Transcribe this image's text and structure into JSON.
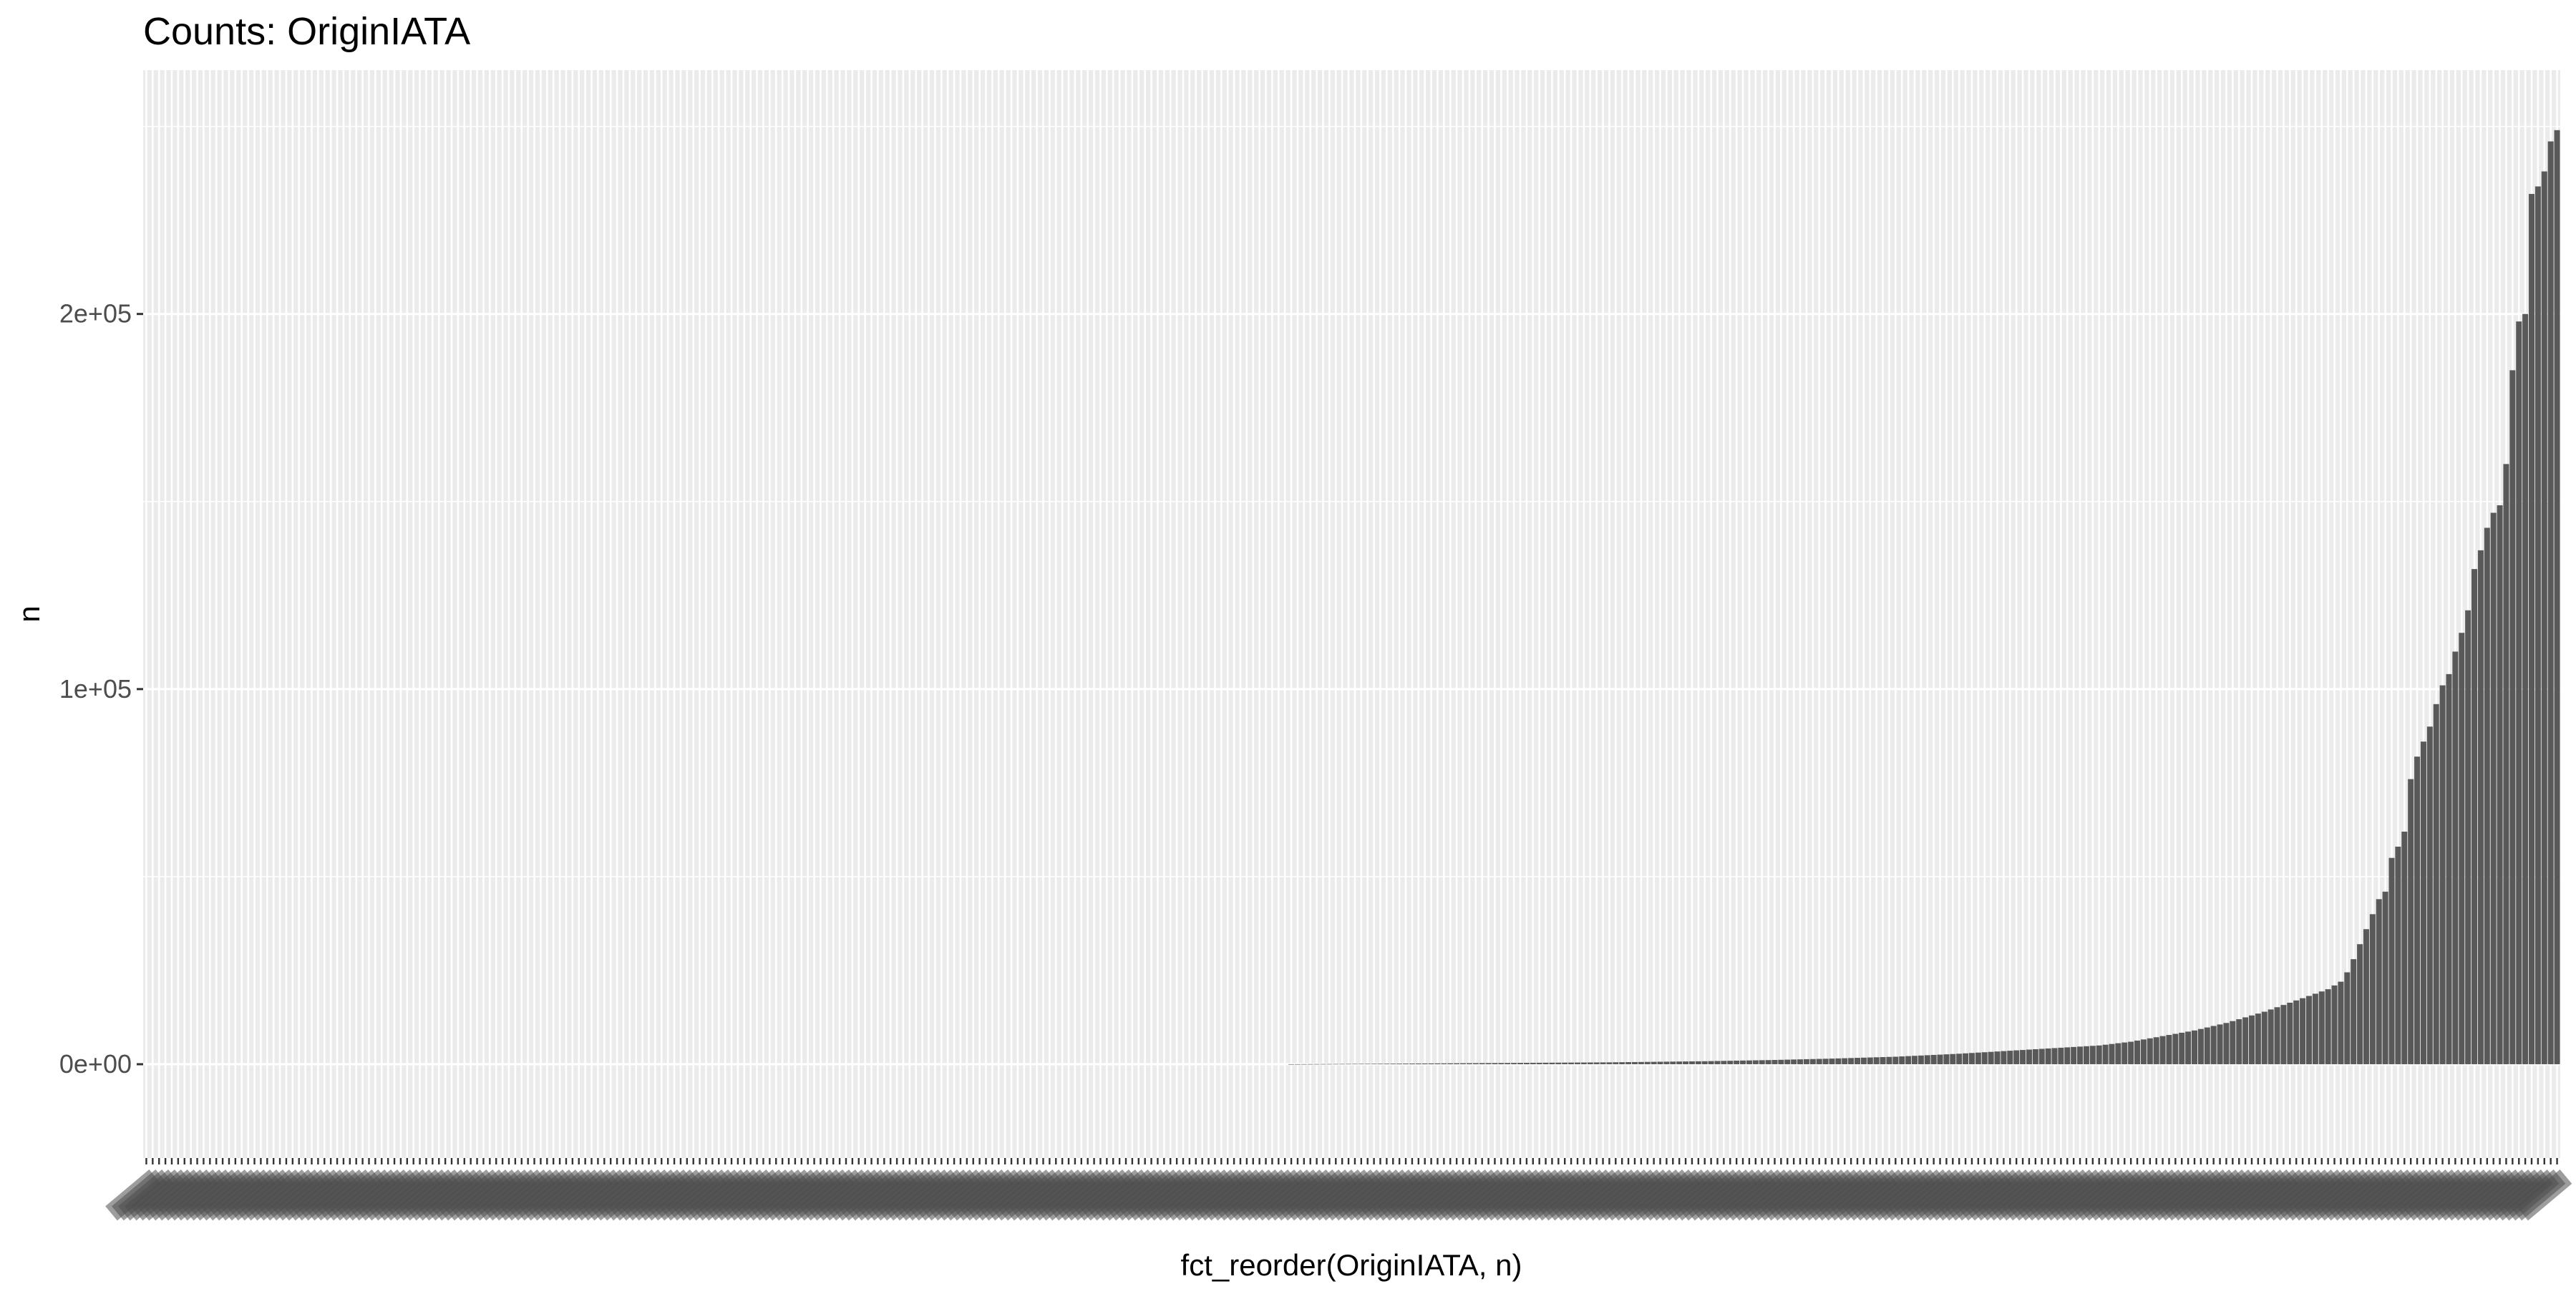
{
  "chart_data": {
    "type": "bar",
    "title": "Counts: OriginIATA",
    "xlabel": "fct_reorder(OriginIATA, n)",
    "ylabel": "n",
    "ylim": [
      -25000,
      265000
    ],
    "yticks": [
      {
        "value": 0,
        "label": "0e+00"
      },
      {
        "value": 100000,
        "label": "1e+05"
      },
      {
        "value": 200000,
        "label": "2e+05"
      }
    ],
    "grid": true,
    "legend": "none",
    "n_categories": 360,
    "category_labels_note": "360 airport-code tick labels, overlapping and illegible",
    "values": [
      0,
      0,
      0,
      0,
      0,
      0,
      0,
      0,
      0,
      0,
      0,
      0,
      0,
      0,
      0,
      0,
      0,
      0,
      0,
      0,
      0,
      0,
      0,
      0,
      0,
      0,
      0,
      0,
      0,
      0,
      0,
      0,
      0,
      0,
      0,
      0,
      0,
      0,
      0,
      0,
      0,
      0,
      0,
      0,
      0,
      0,
      0,
      0,
      0,
      0,
      0,
      0,
      0,
      0,
      0,
      0,
      0,
      0,
      0,
      0,
      0,
      0,
      0,
      0,
      0,
      0,
      0,
      0,
      0,
      0,
      0,
      0,
      0,
      0,
      0,
      0,
      0,
      0,
      0,
      0,
      0,
      0,
      0,
      0,
      0,
      0,
      0,
      0,
      0,
      0,
      0,
      0,
      0,
      0,
      0,
      0,
      0,
      0,
      0,
      0,
      0,
      0,
      0,
      0,
      0,
      0,
      0,
      0,
      0,
      0,
      0,
      0,
      0,
      0,
      0,
      0,
      0,
      0,
      0,
      0,
      0,
      0,
      0,
      0,
      0,
      0,
      0,
      0,
      0,
      0,
      0,
      0,
      0,
      0,
      0,
      0,
      0,
      0,
      0,
      0,
      0,
      0,
      0,
      0,
      0,
      0,
      0,
      0,
      0,
      0,
      0,
      0,
      0,
      0,
      0,
      0,
      0,
      0,
      0,
      0,
      0,
      0,
      0,
      0,
      0,
      0,
      0,
      0,
      0,
      0,
      0,
      0,
      0,
      0,
      0,
      0,
      0,
      0,
      0,
      0,
      5,
      10,
      20,
      30,
      40,
      50,
      60,
      70,
      80,
      90,
      100,
      110,
      120,
      130,
      140,
      150,
      160,
      170,
      180,
      190,
      200,
      210,
      220,
      230,
      240,
      250,
      260,
      270,
      280,
      290,
      300,
      310,
      320,
      330,
      340,
      350,
      360,
      370,
      380,
      390,
      400,
      410,
      420,
      430,
      440,
      450,
      460,
      470,
      480,
      490,
      500,
      520,
      540,
      560,
      580,
      600,
      620,
      640,
      660,
      680,
      700,
      720,
      740,
      760,
      780,
      800,
      830,
      860,
      890,
      920,
      950,
      980,
      1010,
      1040,
      1070,
      1100,
      1140,
      1180,
      1220,
      1260,
      1300,
      1340,
      1380,
      1420,
      1460,
      1500,
      1550,
      1600,
      1650,
      1700,
      1750,
      1800,
      1850,
      1900,
      1950,
      2000,
      2080,
      2160,
      2240,
      2320,
      2400,
      2480,
      2560,
      2640,
      2720,
      2800,
      2900,
      3000,
      3100,
      3200,
      3300,
      3400,
      3500,
      3600,
      3700,
      3800,
      3900,
      4000,
      4100,
      4200,
      4300,
      4400,
      4500,
      4600,
      4700,
      4800,
      4900,
      5000,
      5200,
      5400,
      5600,
      5800,
      6000,
      6300,
      6600,
      6900,
      7200,
      7500,
      7800,
      8100,
      8400,
      8700,
      9000,
      9400,
      9800,
      10200,
      10600,
      11000,
      11500,
      12000,
      12500,
      13000,
      13500,
      14000,
      14600,
      15200,
      15800,
      16400,
      17000,
      17600,
      18200,
      18800,
      19400,
      20000,
      21000,
      22000,
      24500,
      28000,
      32000,
      36000,
      40000,
      44000,
      46000,
      55000,
      58000,
      62000,
      76000,
      82000,
      86000,
      90000,
      96000,
      101000,
      104000,
      110000,
      115000,
      121000,
      132000,
      137000,
      143000,
      147000,
      149000,
      160000,
      185000,
      198000,
      200000,
      232000,
      234000,
      238000,
      246000,
      249000
    ]
  }
}
